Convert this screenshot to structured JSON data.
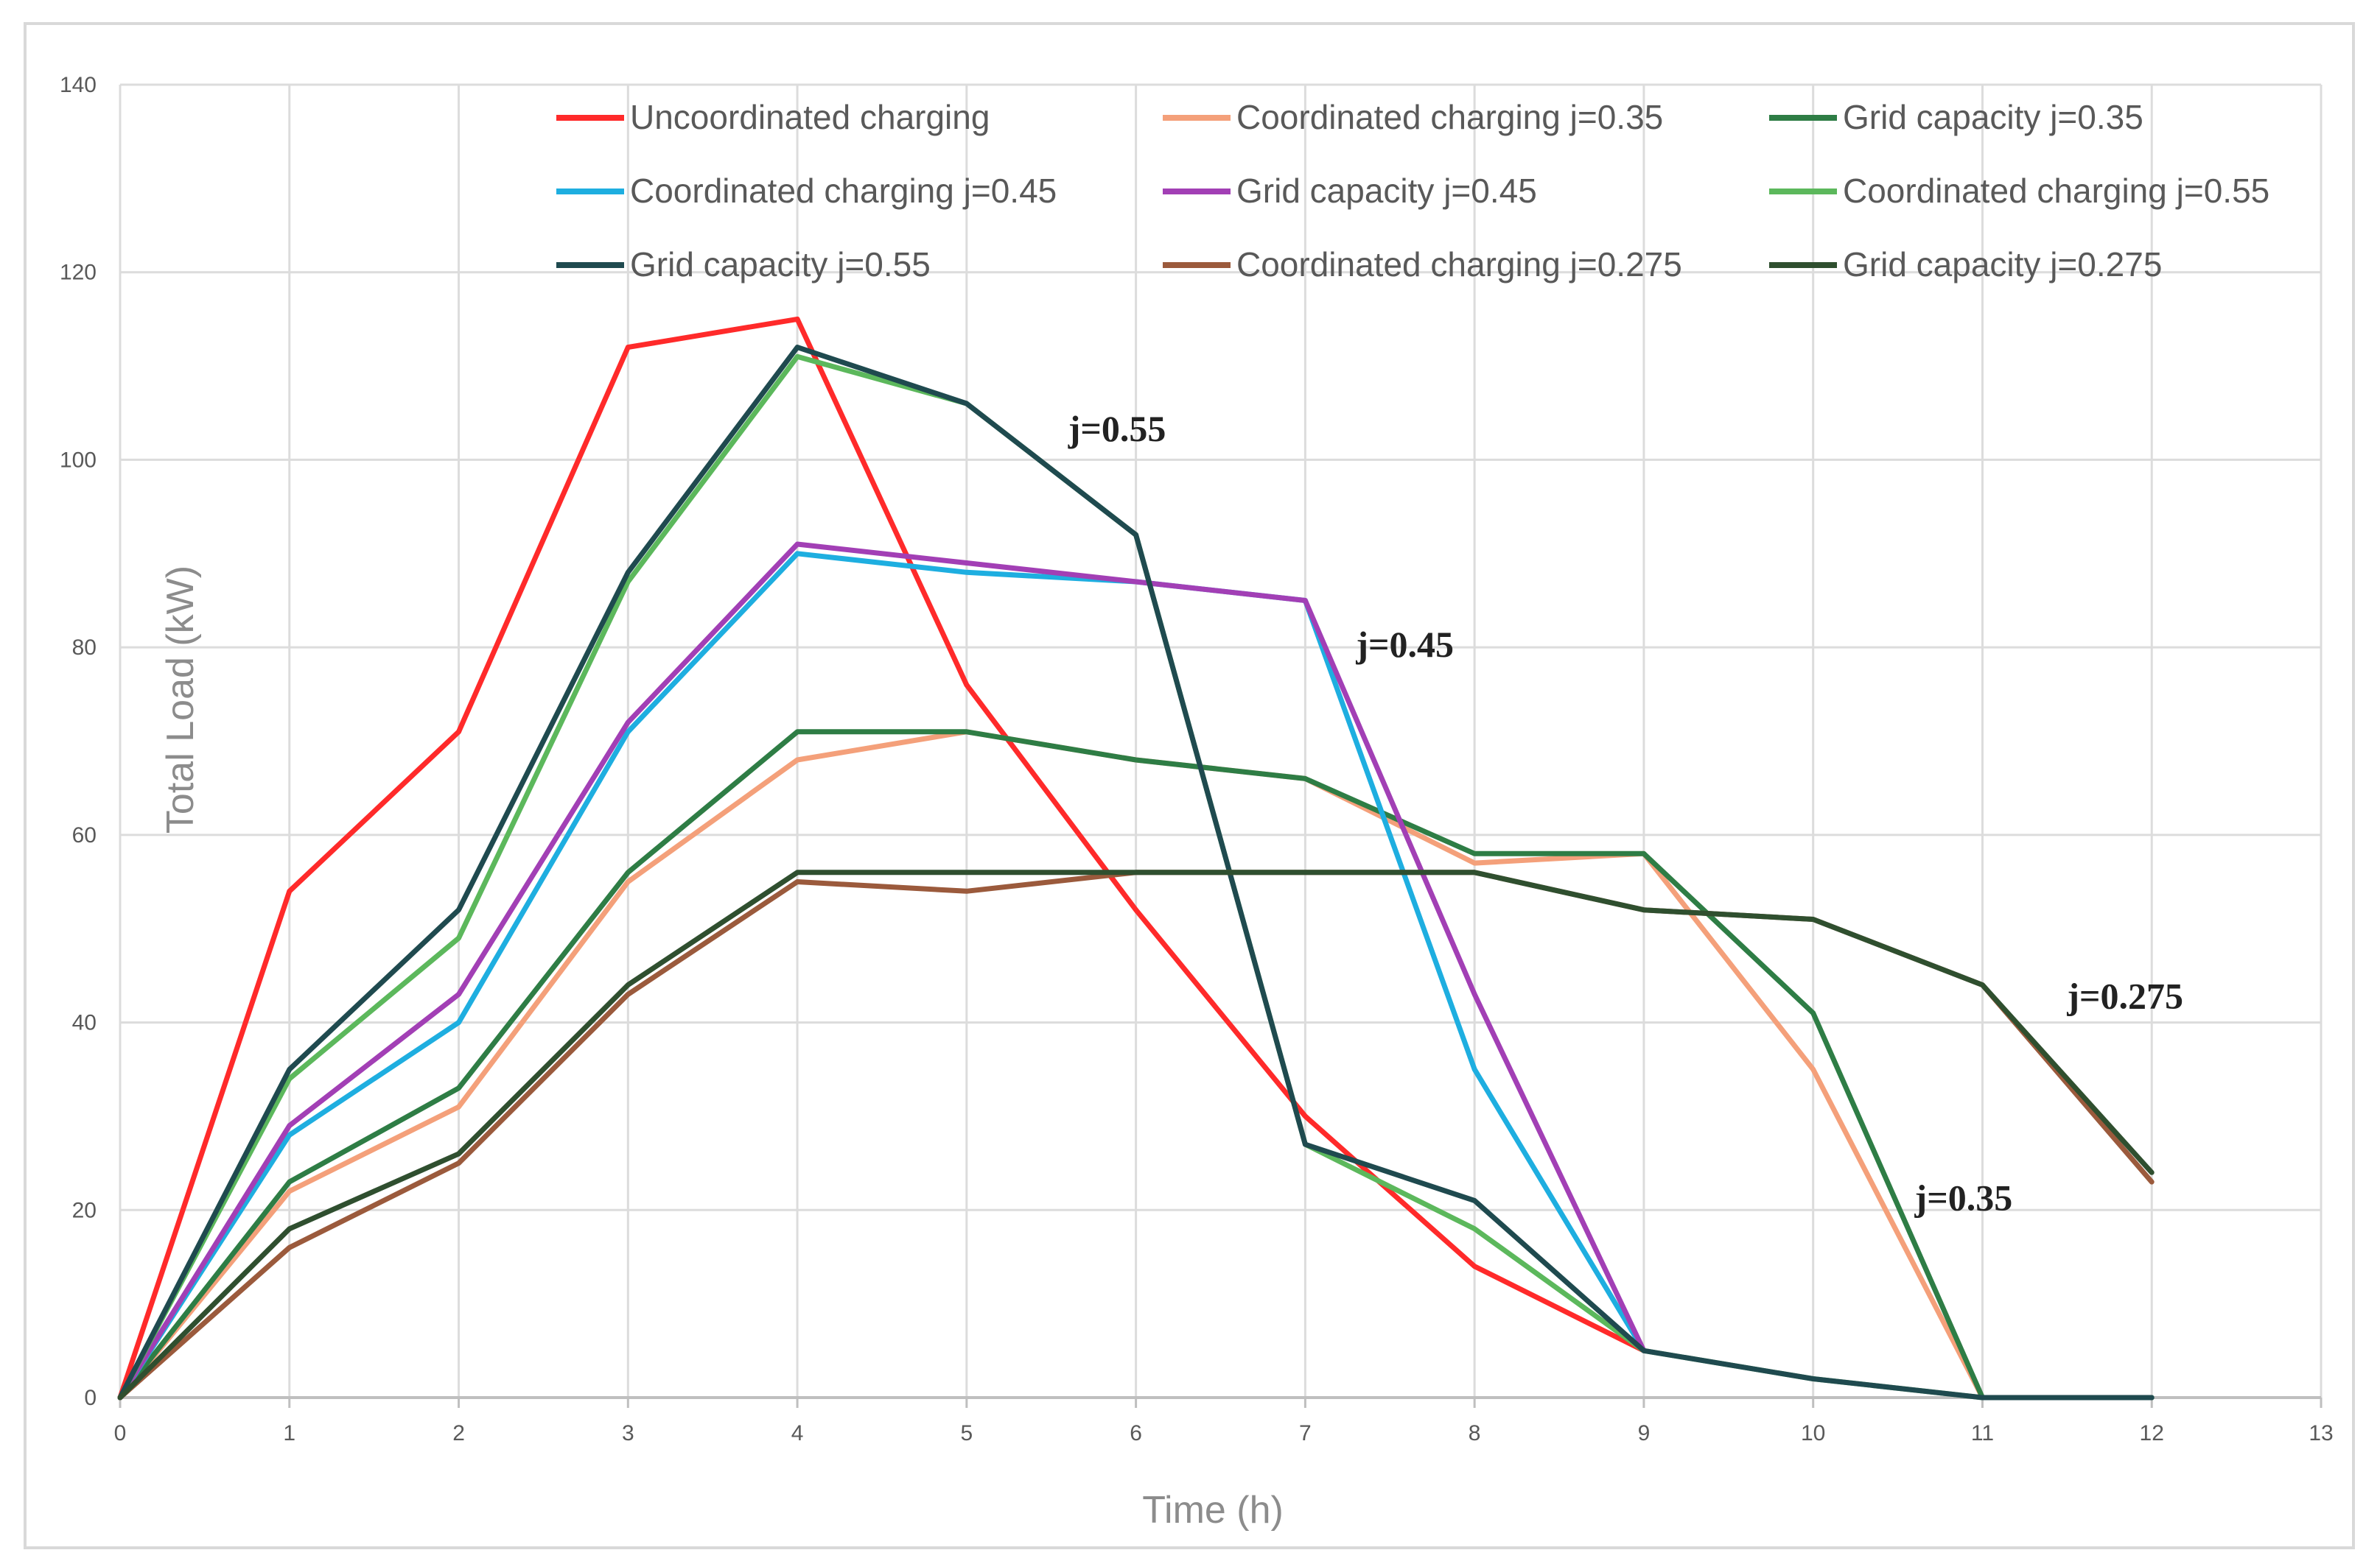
{
  "chart_data": {
    "type": "line",
    "title": "",
    "xlabel": "Time (h)",
    "ylabel": "Total Load (kW)",
    "xlim": [
      0,
      13
    ],
    "ylim": [
      0,
      140
    ],
    "x_ticks": [
      0,
      1,
      2,
      3,
      4,
      5,
      6,
      7,
      8,
      9,
      10,
      11,
      12,
      13
    ],
    "y_ticks": [
      0,
      20,
      40,
      60,
      80,
      100,
      120,
      140
    ],
    "grid": true,
    "legend_position": "top",
    "series": [
      {
        "name": "Uncoordinated  charging",
        "color": "#ff2a2a",
        "x": [
          0,
          1,
          2,
          3,
          4,
          5,
          6,
          7,
          8,
          9
        ],
        "y": [
          0,
          54,
          71,
          112,
          115,
          76,
          52,
          30,
          14,
          5
        ]
      },
      {
        "name": "Coordinated charging j=0.35",
        "color": "#f4a07a",
        "x": [
          0,
          1,
          2,
          3,
          4,
          5,
          6,
          7,
          8,
          9,
          10,
          11
        ],
        "y": [
          0,
          22,
          31,
          55,
          68,
          71,
          68,
          66,
          57,
          58,
          35,
          0
        ]
      },
      {
        "name": "Grid capacity j=0.35",
        "color": "#2e7d45",
        "x": [
          0,
          1,
          2,
          3,
          4,
          5,
          6,
          7,
          8,
          9,
          10,
          11
        ],
        "y": [
          0,
          23,
          33,
          56,
          71,
          71,
          68,
          66,
          58,
          58,
          41,
          0
        ]
      },
      {
        "name": "Coordinated charging j=0.45",
        "color": "#1eaee0",
        "x": [
          0,
          1,
          2,
          3,
          4,
          5,
          6,
          7,
          8,
          9
        ],
        "y": [
          0,
          28,
          40,
          71,
          90,
          88,
          87,
          85,
          35,
          5
        ]
      },
      {
        "name": "Grid capacity j=0.45",
        "color": "#a23fb5",
        "x": [
          0,
          1,
          2,
          3,
          4,
          5,
          6,
          7,
          8,
          9
        ],
        "y": [
          0,
          29,
          43,
          72,
          91,
          89,
          87,
          85,
          43,
          5
        ]
      },
      {
        "name": "Coordinated charging j=0.55",
        "color": "#5cb85c",
        "x": [
          0,
          1,
          2,
          3,
          4,
          5,
          6,
          7,
          8,
          9,
          10,
          11,
          12
        ],
        "y": [
          0,
          34,
          49,
          87,
          111,
          106,
          92,
          27,
          18,
          5,
          2,
          0,
          0
        ]
      },
      {
        "name": "Grid capacity j=0.55",
        "color": "#1f4a4f",
        "x": [
          0,
          1,
          2,
          3,
          4,
          5,
          6,
          7,
          8,
          9,
          10,
          11,
          12
        ],
        "y": [
          0,
          35,
          52,
          88,
          112,
          106,
          92,
          27,
          21,
          5,
          2,
          0,
          0
        ]
      },
      {
        "name": "Coordinated charging j=0.275",
        "color": "#9b5a3c",
        "x": [
          0,
          1,
          2,
          3,
          4,
          5,
          6,
          7,
          8,
          9,
          10,
          11,
          12
        ],
        "y": [
          0,
          16,
          25,
          43,
          55,
          54,
          56,
          56,
          56,
          52,
          51,
          44,
          23
        ]
      },
      {
        "name": "Grid capacity j=0.275",
        "color": "#2f4f2f",
        "x": [
          0,
          1,
          2,
          3,
          4,
          5,
          6,
          7,
          8,
          9,
          10,
          11,
          12
        ],
        "y": [
          0,
          18,
          26,
          44,
          56,
          56,
          56,
          56,
          56,
          52,
          51,
          44,
          24
        ]
      }
    ],
    "annotations": [
      {
        "text": "j=0.55",
        "x": 5.6,
        "y": 102
      },
      {
        "text": "j=0.45",
        "x": 7.3,
        "y": 79
      },
      {
        "text": "j=0.275",
        "x": 11.5,
        "y": 41.5
      },
      {
        "text": "j=0.35",
        "x": 10.6,
        "y": 20
      }
    ]
  }
}
